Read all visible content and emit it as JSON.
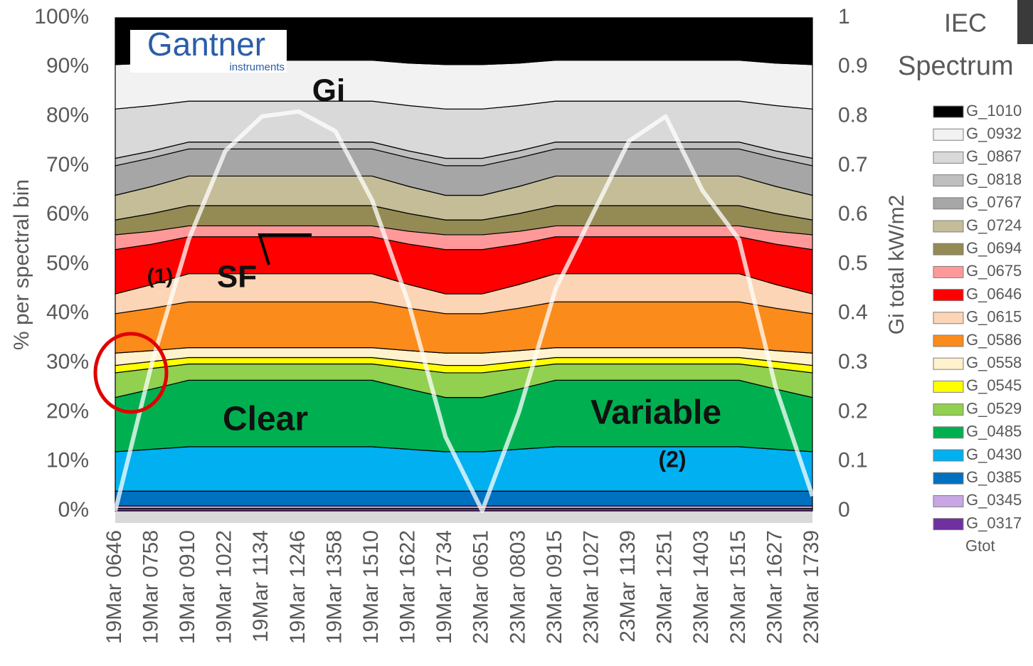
{
  "chart_data": {
    "type": "stacked-area",
    "logo": "Gantner",
    "logo_subtitle": "instruments",
    "header": [
      "IEC",
      "Spectrum"
    ],
    "y_label": "% per spectral bin",
    "y2_label": "Gi total kW/m2",
    "annotations": [
      "Gi",
      "SF",
      "(1)",
      "Clear",
      "Variable",
      "(2)"
    ],
    "categories": [
      "19Mar 0646",
      "19Mar 0758",
      "19Mar 0910",
      "19Mar 1022",
      "19Mar 1134",
      "19Mar 1246",
      "19Mar 1358",
      "19Mar 1510",
      "19Mar 1622",
      "19Mar 1734",
      "23Mar 0651",
      "23Mar 0803",
      "23Mar 0915",
      "23Mar 1027",
      "23Mar 1139",
      "23Mar 1251",
      "23Mar 1403",
      "23Mar 1515",
      "23Mar 1627",
      "23Mar 1739"
    ],
    "ylim": [
      0,
      100
    ],
    "yticks": [
      {
        "value": 0,
        "label": "0%"
      },
      {
        "value": 10,
        "label": "10%"
      },
      {
        "value": 20,
        "label": "20%"
      },
      {
        "value": 30,
        "label": "30%"
      },
      {
        "value": 40,
        "label": "40%"
      },
      {
        "value": 50,
        "label": "50%"
      },
      {
        "value": 60,
        "label": "60%"
      },
      {
        "value": 70,
        "label": "70%"
      },
      {
        "value": 80,
        "label": "80%"
      },
      {
        "value": 90,
        "label": "90%"
      },
      {
        "value": 100,
        "label": "100%"
      }
    ],
    "y2lim": [
      0,
      1
    ],
    "y2ticks": [
      0,
      0.1,
      0.2,
      0.3,
      0.4,
      0.5,
      0.6,
      0.7,
      0.8,
      0.9,
      1
    ],
    "series": [
      {
        "name": "G_1010",
        "color": "#000000",
        "values": [
          9.5,
          9.2,
          8.6,
          8.6,
          8.6,
          8.6,
          8.6,
          8.6,
          9.2,
          9.5,
          9.5,
          9.2,
          8.6,
          8.6,
          8.6,
          8.6,
          8.6,
          8.6,
          9.2,
          9.5
        ]
      },
      {
        "name": "G_0932",
        "color": "#f2f2f2",
        "values": [
          9,
          8.6,
          8.3,
          8.3,
          8.3,
          8.3,
          8.3,
          8.3,
          8.6,
          9,
          9,
          8.6,
          8.3,
          8.3,
          8.3,
          8.3,
          8.3,
          8.3,
          8.6,
          9
        ]
      },
      {
        "name": "G_0867",
        "color": "#d9d9d9",
        "values": [
          10,
          9.2,
          8.3,
          8.3,
          8.3,
          8.3,
          8.3,
          8.3,
          9.2,
          10,
          10,
          9.2,
          8.3,
          8.3,
          8.3,
          8.3,
          8.3,
          8.3,
          9.2,
          10
        ]
      },
      {
        "name": "G_0818",
        "color": "#bfbfbf",
        "values": [
          1.5,
          1.4,
          1.4,
          1.4,
          1.4,
          1.4,
          1.4,
          1.4,
          1.4,
          1.5,
          1.5,
          1.4,
          1.4,
          1.4,
          1.4,
          1.4,
          1.4,
          1.4,
          1.4,
          1.5
        ]
      },
      {
        "name": "G_0767",
        "color": "#a6a6a6",
        "values": [
          6,
          5.8,
          5.5,
          5.5,
          5.5,
          5.5,
          5.5,
          5.5,
          5.8,
          6,
          6,
          5.8,
          5.5,
          5.5,
          5.5,
          5.5,
          5.5,
          5.5,
          5.8,
          6
        ]
      },
      {
        "name": "G_0724",
        "color": "#c4bd97",
        "values": [
          5,
          5.5,
          6,
          6,
          6,
          6,
          6,
          6,
          5.5,
          5,
          5,
          5.5,
          6,
          6,
          6,
          6,
          6,
          6,
          5.5,
          5
        ]
      },
      {
        "name": "G_0694",
        "color": "#948a54",
        "values": [
          3,
          3.6,
          4.1,
          4.1,
          4.1,
          4.1,
          4.1,
          4.1,
          3.6,
          3,
          3,
          3.6,
          4.1,
          4.1,
          4.1,
          4.1,
          4.1,
          4.1,
          3.6,
          3
        ]
      },
      {
        "name": "G_0675",
        "color": "#ff9999",
        "values": [
          3,
          2.6,
          2.2,
          2.2,
          2.2,
          2.2,
          2.2,
          2.2,
          2.6,
          3,
          3,
          2.6,
          2.2,
          2.2,
          2.2,
          2.2,
          2.2,
          2.2,
          2.6,
          3
        ]
      },
      {
        "name": "G_0646",
        "color": "#ff0000",
        "values": [
          9,
          8.2,
          7.5,
          7.5,
          7.5,
          7.5,
          7.5,
          7.5,
          8.2,
          9,
          9,
          8.2,
          7.5,
          7.5,
          7.5,
          7.5,
          7.5,
          7.5,
          8.2,
          9
        ]
      },
      {
        "name": "G_0615",
        "color": "#fbd5b5",
        "values": [
          4,
          4.8,
          5.7,
          5.7,
          5.7,
          5.7,
          5.7,
          5.7,
          4.8,
          4,
          4,
          4.8,
          5.7,
          5.7,
          5.7,
          5.7,
          5.7,
          5.7,
          4.8,
          4
        ]
      },
      {
        "name": "G_0586",
        "color": "#fb8b1b",
        "values": [
          8,
          8.6,
          9.3,
          9.3,
          9.3,
          9.3,
          9.3,
          9.3,
          8.6,
          8,
          8,
          8.6,
          9.3,
          9.3,
          9.3,
          9.3,
          9.3,
          9.3,
          8.6,
          8
        ]
      },
      {
        "name": "G_0558",
        "color": "#fff2cc",
        "values": [
          2.5,
          2.2,
          2,
          2,
          2,
          2,
          2,
          2,
          2.2,
          2.5,
          2.5,
          2.2,
          2,
          2,
          2,
          2,
          2,
          2,
          2.2,
          2.5
        ]
      },
      {
        "name": "G_0545",
        "color": "#ffff00",
        "values": [
          1.5,
          1.4,
          1.3,
          1.3,
          1.3,
          1.3,
          1.3,
          1.3,
          1.4,
          1.5,
          1.5,
          1.4,
          1.3,
          1.3,
          1.3,
          1.3,
          1.3,
          1.3,
          1.4,
          1.5
        ]
      },
      {
        "name": "G_0529",
        "color": "#92d050",
        "values": [
          5,
          4.2,
          3.3,
          3.3,
          3.3,
          3.3,
          3.3,
          3.3,
          4.2,
          5,
          5,
          4.2,
          3.3,
          3.3,
          3.3,
          3.3,
          3.3,
          3.3,
          4.2,
          5
        ]
      },
      {
        "name": "G_0485",
        "color": "#00b050",
        "values": [
          11,
          12.2,
          13.5,
          13.5,
          13.5,
          13.5,
          13.5,
          13.5,
          12.2,
          11,
          11,
          12.2,
          13.5,
          13.5,
          13.5,
          13.5,
          13.5,
          13.5,
          12.2,
          11
        ]
      },
      {
        "name": "G_0430",
        "color": "#00b0f0",
        "values": [
          8,
          8.5,
          9,
          9,
          9,
          9,
          9,
          9,
          8.5,
          8,
          8,
          8.5,
          9,
          9,
          9,
          9,
          9,
          9,
          8.5,
          8
        ]
      },
      {
        "name": "G_0385",
        "color": "#0070c0",
        "values": [
          3,
          3,
          3,
          3,
          3,
          3,
          3,
          3,
          3,
          3,
          3,
          3,
          3,
          3,
          3,
          3,
          3,
          3,
          3,
          3
        ]
      },
      {
        "name": "G_0345",
        "color": "#c9a6e4",
        "values": [
          0.5,
          0.5,
          0.5,
          0.5,
          0.5,
          0.5,
          0.5,
          0.5,
          0.5,
          0.5,
          0.5,
          0.5,
          0.5,
          0.5,
          0.5,
          0.5,
          0.5,
          0.5,
          0.5,
          0.5
        ]
      },
      {
        "name": "G_0317",
        "color": "#7030a0",
        "values": [
          0.5,
          0.5,
          0.5,
          0.5,
          0.5,
          0.5,
          0.5,
          0.5,
          0.5,
          0.5,
          0.5,
          0.5,
          0.5,
          0.5,
          0.5,
          0.5,
          0.5,
          0.5,
          0.5,
          0.5
        ]
      },
      {
        "name": "Gtot",
        "color": "#ffffff",
        "axis": "y2",
        "values": [
          0,
          0.3,
          0.55,
          0.73,
          0.8,
          0.81,
          0.77,
          0.63,
          0.42,
          0.15,
          0,
          0.2,
          0.45,
          0.6,
          0.75,
          0.8,
          0.65,
          0.55,
          0.25,
          0.03
        ]
      }
    ]
  }
}
